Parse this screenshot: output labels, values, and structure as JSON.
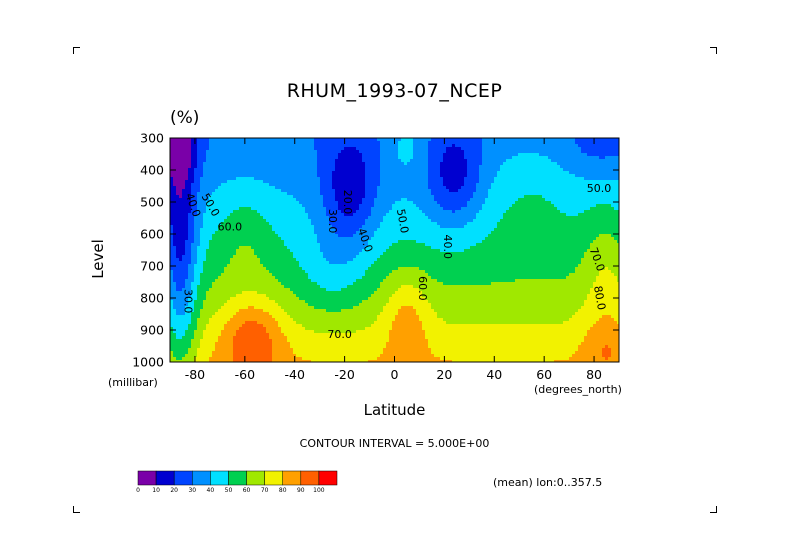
{
  "colors": [
    "#7a00a8",
    "#0000d0",
    "#0044ff",
    "#0090ff",
    "#00e0ff",
    "#00d050",
    "#a0e800",
    "#f2f200",
    "#ffa000",
    "#ff6000",
    "#ff0000"
  ],
  "chart_data": {
    "type": "heatmap",
    "title": "RHUM_1993-07_NCEP",
    "units": "(%)",
    "xlabel": "Latitude",
    "ylabel": "Level",
    "x_unit_label": "(degrees_north)",
    "y_unit_label": "(millibar)",
    "x_ticks": [
      -80,
      -60,
      -40,
      -20,
      0,
      20,
      40,
      60,
      80
    ],
    "x_tick_labels": [
      "-80",
      "-60",
      "-40",
      "-20",
      "0",
      "20",
      "40",
      "60",
      "80"
    ],
    "y_ticks": [
      300,
      400,
      500,
      600,
      700,
      800,
      900,
      1000
    ],
    "y_tick_labels": [
      "300",
      "400",
      "500",
      "600",
      "700",
      "800",
      "900",
      "1000"
    ],
    "xlim": [
      -90,
      90
    ],
    "ylim": [
      1000,
      300
    ],
    "contour_interval_text": "CONTOUR INTERVAL = 5.000E+00",
    "mean_note": "(mean) lon:0..357.5",
    "colorbar": {
      "levels": [
        0,
        10,
        20,
        30,
        40,
        50,
        60,
        70,
        80,
        90,
        100
      ],
      "labels": [
        "0",
        "10",
        "20",
        "30",
        "40",
        "50",
        "60",
        "70",
        "80",
        "90",
        "100"
      ]
    },
    "contour_labels": [
      {
        "text": "40.0",
        "lat": -81,
        "p": 510,
        "rot": 70
      },
      {
        "text": "50.0",
        "lat": -74,
        "p": 510,
        "rot": 60
      },
      {
        "text": "60.0",
        "lat": -66,
        "p": 580,
        "rot": 0
      },
      {
        "text": "30.0",
        "lat": -83,
        "p": 810,
        "rot": 90
      },
      {
        "text": "20.0",
        "lat": -19,
        "p": 500,
        "rot": 90
      },
      {
        "text": "30.0",
        "lat": -25,
        "p": 560,
        "rot": 90
      },
      {
        "text": "40.0",
        "lat": -12,
        "p": 620,
        "rot": 70
      },
      {
        "text": "50.0",
        "lat": 3,
        "p": 560,
        "rot": 80
      },
      {
        "text": "60.0",
        "lat": 11,
        "p": 770,
        "rot": 90
      },
      {
        "text": "70.0",
        "lat": -22,
        "p": 915,
        "rot": 0
      },
      {
        "text": "40.0",
        "lat": 21,
        "p": 640,
        "rot": 90
      },
      {
        "text": "50.0",
        "lat": 82,
        "p": 460,
        "rot": 0
      },
      {
        "text": "70.0",
        "lat": 81,
        "p": 680,
        "rot": 70
      },
      {
        "text": "80.0",
        "lat": 82,
        "p": 800,
        "rot": 80
      }
    ]
  }
}
